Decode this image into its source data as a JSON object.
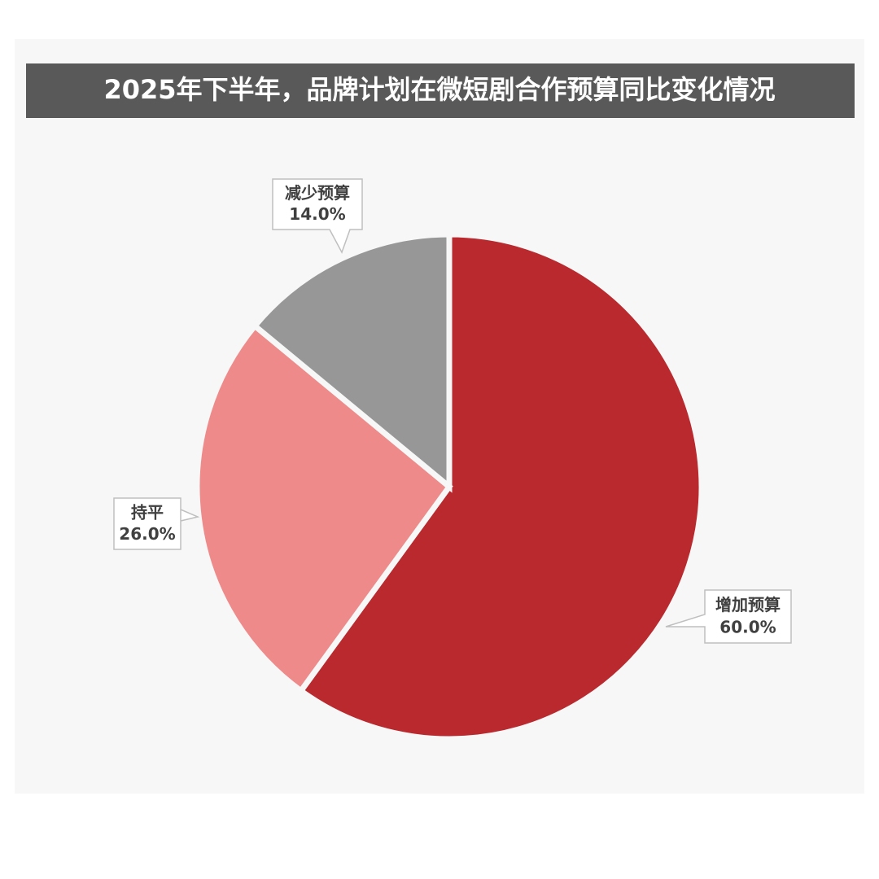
{
  "chart_data": {
    "type": "pie",
    "title": "2025年下半年，品牌计划在微短剧合作预算同比变化情况",
    "categories": [
      "增加预算",
      "持平",
      "减少预算"
    ],
    "values": [
      60,
      26,
      14
    ],
    "value_labels": [
      "60.0%",
      "26.0%",
      "14.0%"
    ],
    "colors": [
      "#b9292e",
      "#ef8a8a",
      "#979797"
    ]
  }
}
